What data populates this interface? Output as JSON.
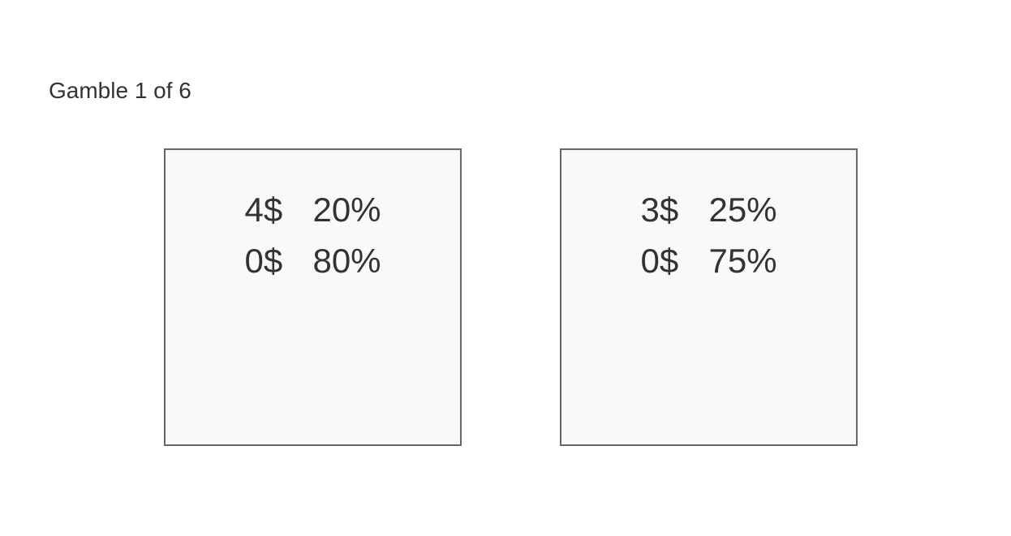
{
  "title": "Gamble 1 of 6",
  "options": [
    {
      "outcomes": [
        {
          "amount": "4$",
          "probability": "20%"
        },
        {
          "amount": "0$",
          "probability": "80%"
        }
      ]
    },
    {
      "outcomes": [
        {
          "amount": "3$",
          "probability": "25%"
        },
        {
          "amount": "0$",
          "probability": "75%"
        }
      ]
    }
  ],
  "colors": {
    "text": "#333333",
    "card_background": "#f9f9f9",
    "card_border": "#666666"
  }
}
